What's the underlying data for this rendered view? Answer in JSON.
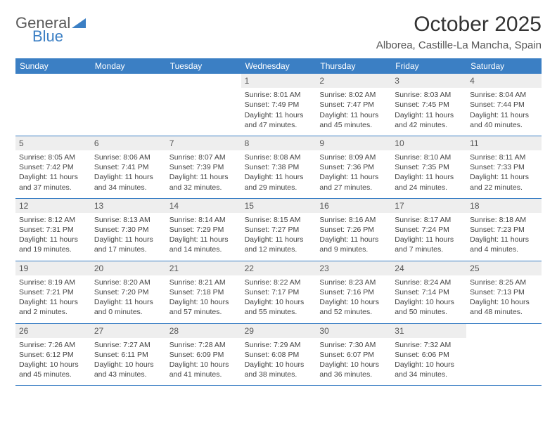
{
  "logo": {
    "word1": "General",
    "word2": "Blue"
  },
  "title": "October 2025",
  "location": "Alborea, Castille-La Mancha, Spain",
  "colors": {
    "header_bg": "#3b7fc4",
    "header_text": "#ffffff",
    "daynum_bg": "#eeeeee",
    "week_border": "#3b7fc4",
    "body_text": "#444444"
  },
  "day_names": [
    "Sunday",
    "Monday",
    "Tuesday",
    "Wednesday",
    "Thursday",
    "Friday",
    "Saturday"
  ],
  "weeks": [
    [
      null,
      null,
      null,
      {
        "n": "1",
        "sr": "8:01 AM",
        "ss": "7:49 PM",
        "dh": "11",
        "dm": "47"
      },
      {
        "n": "2",
        "sr": "8:02 AM",
        "ss": "7:47 PM",
        "dh": "11",
        "dm": "45"
      },
      {
        "n": "3",
        "sr": "8:03 AM",
        "ss": "7:45 PM",
        "dh": "11",
        "dm": "42"
      },
      {
        "n": "4",
        "sr": "8:04 AM",
        "ss": "7:44 PM",
        "dh": "11",
        "dm": "40"
      }
    ],
    [
      {
        "n": "5",
        "sr": "8:05 AM",
        "ss": "7:42 PM",
        "dh": "11",
        "dm": "37"
      },
      {
        "n": "6",
        "sr": "8:06 AM",
        "ss": "7:41 PM",
        "dh": "11",
        "dm": "34"
      },
      {
        "n": "7",
        "sr": "8:07 AM",
        "ss": "7:39 PM",
        "dh": "11",
        "dm": "32"
      },
      {
        "n": "8",
        "sr": "8:08 AM",
        "ss": "7:38 PM",
        "dh": "11",
        "dm": "29"
      },
      {
        "n": "9",
        "sr": "8:09 AM",
        "ss": "7:36 PM",
        "dh": "11",
        "dm": "27"
      },
      {
        "n": "10",
        "sr": "8:10 AM",
        "ss": "7:35 PM",
        "dh": "11",
        "dm": "24"
      },
      {
        "n": "11",
        "sr": "8:11 AM",
        "ss": "7:33 PM",
        "dh": "11",
        "dm": "22"
      }
    ],
    [
      {
        "n": "12",
        "sr": "8:12 AM",
        "ss": "7:31 PM",
        "dh": "11",
        "dm": "19"
      },
      {
        "n": "13",
        "sr": "8:13 AM",
        "ss": "7:30 PM",
        "dh": "11",
        "dm": "17"
      },
      {
        "n": "14",
        "sr": "8:14 AM",
        "ss": "7:29 PM",
        "dh": "11",
        "dm": "14"
      },
      {
        "n": "15",
        "sr": "8:15 AM",
        "ss": "7:27 PM",
        "dh": "11",
        "dm": "12"
      },
      {
        "n": "16",
        "sr": "8:16 AM",
        "ss": "7:26 PM",
        "dh": "11",
        "dm": "9"
      },
      {
        "n": "17",
        "sr": "8:17 AM",
        "ss": "7:24 PM",
        "dh": "11",
        "dm": "7"
      },
      {
        "n": "18",
        "sr": "8:18 AM",
        "ss": "7:23 PM",
        "dh": "11",
        "dm": "4"
      }
    ],
    [
      {
        "n": "19",
        "sr": "8:19 AM",
        "ss": "7:21 PM",
        "dh": "11",
        "dm": "2"
      },
      {
        "n": "20",
        "sr": "8:20 AM",
        "ss": "7:20 PM",
        "dh": "11",
        "dm": "0"
      },
      {
        "n": "21",
        "sr": "8:21 AM",
        "ss": "7:18 PM",
        "dh": "10",
        "dm": "57"
      },
      {
        "n": "22",
        "sr": "8:22 AM",
        "ss": "7:17 PM",
        "dh": "10",
        "dm": "55"
      },
      {
        "n": "23",
        "sr": "8:23 AM",
        "ss": "7:16 PM",
        "dh": "10",
        "dm": "52"
      },
      {
        "n": "24",
        "sr": "8:24 AM",
        "ss": "7:14 PM",
        "dh": "10",
        "dm": "50"
      },
      {
        "n": "25",
        "sr": "8:25 AM",
        "ss": "7:13 PM",
        "dh": "10",
        "dm": "48"
      }
    ],
    [
      {
        "n": "26",
        "sr": "7:26 AM",
        "ss": "6:12 PM",
        "dh": "10",
        "dm": "45"
      },
      {
        "n": "27",
        "sr": "7:27 AM",
        "ss": "6:11 PM",
        "dh": "10",
        "dm": "43"
      },
      {
        "n": "28",
        "sr": "7:28 AM",
        "ss": "6:09 PM",
        "dh": "10",
        "dm": "41"
      },
      {
        "n": "29",
        "sr": "7:29 AM",
        "ss": "6:08 PM",
        "dh": "10",
        "dm": "38"
      },
      {
        "n": "30",
        "sr": "7:30 AM",
        "ss": "6:07 PM",
        "dh": "10",
        "dm": "36"
      },
      {
        "n": "31",
        "sr": "7:32 AM",
        "ss": "6:06 PM",
        "dh": "10",
        "dm": "34"
      },
      null
    ]
  ],
  "labels": {
    "sunrise_prefix": "Sunrise: ",
    "sunset_prefix": "Sunset: ",
    "daylight_prefix": "Daylight: ",
    "hours_word": " hours",
    "and_word": "and ",
    "minutes_word": " minutes."
  }
}
